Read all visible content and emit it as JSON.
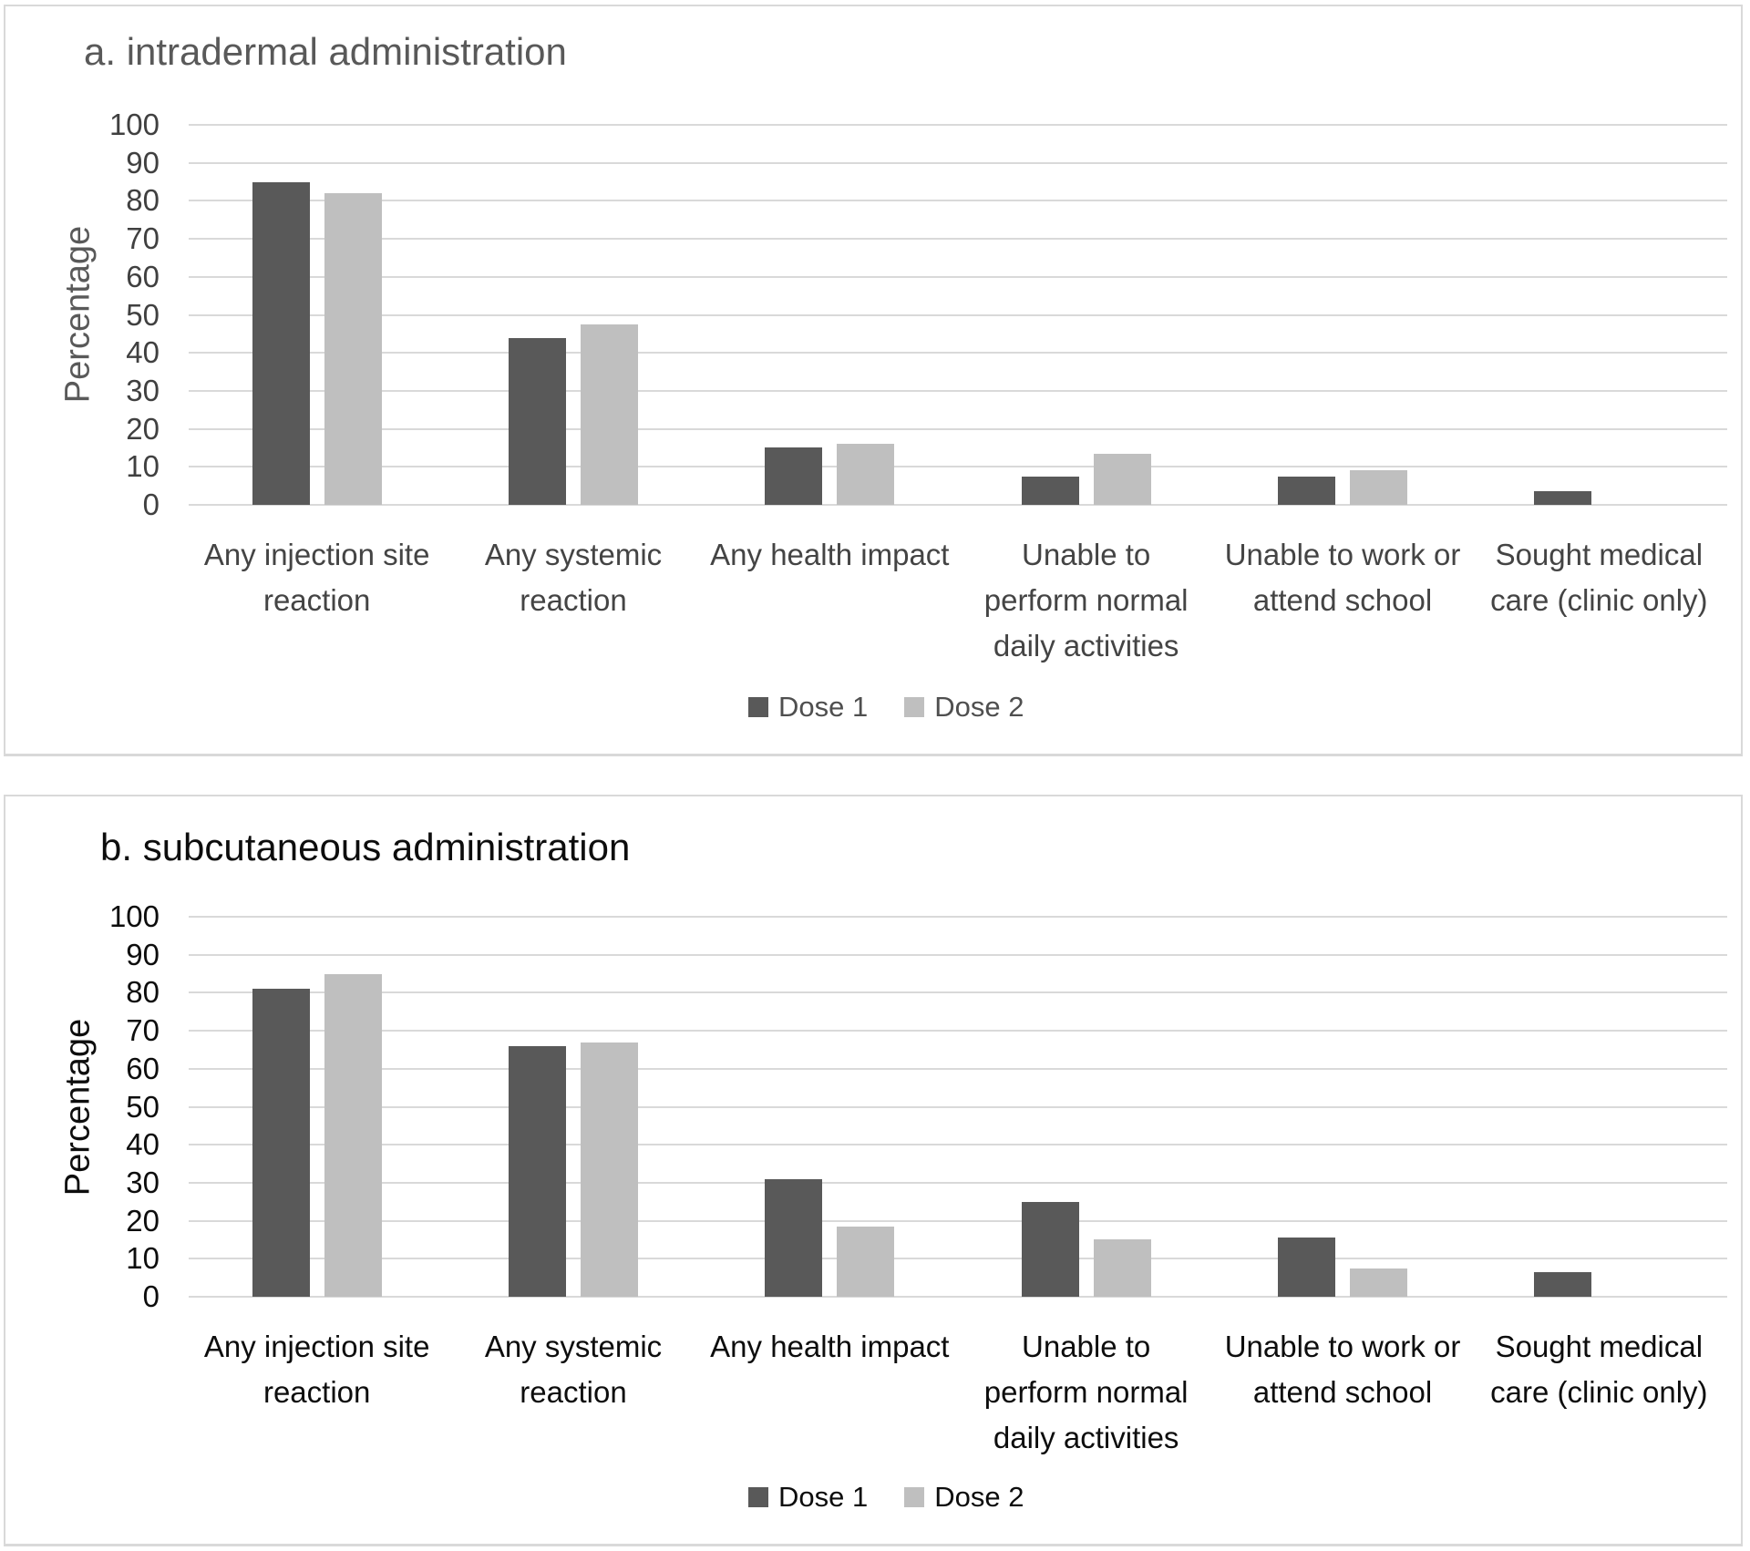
{
  "panels": [
    {
      "id": "a",
      "title": "a. intradermal administration",
      "ylabel": "Percentage",
      "legend": [
        {
          "label": "Dose 1"
        },
        {
          "label": "Dose 2"
        }
      ]
    },
    {
      "id": "b",
      "title": "b. subcutaneous administration",
      "ylabel": "Percentage",
      "legend": [
        {
          "label": "Dose 1"
        },
        {
          "label": "Dose 2"
        }
      ]
    }
  ],
  "category_lines": [
    [
      "Any injection site",
      "reaction"
    ],
    [
      "Any systemic",
      "reaction"
    ],
    [
      "Any health impact"
    ],
    [
      "Unable to",
      "perform normal",
      "daily activities"
    ],
    [
      "Unable to work or",
      "attend school"
    ],
    [
      "Sought medical",
      "care (clinic only)"
    ]
  ],
  "y_axis": {
    "min": 0,
    "max": 100,
    "step": 10
  },
  "colors": {
    "dose1": "#595959",
    "dose2": "#bfbfbf",
    "gridline": "#d9d9d9",
    "panel_border": "#d9d9d9",
    "panel_a_text": "#595959",
    "panel_b_text": "#0d0d0d"
  },
  "chart_data": [
    {
      "type": "bar",
      "title": "a. intradermal administration",
      "categories": [
        "Any injection site reaction",
        "Any systemic reaction",
        "Any health impact",
        "Unable to perform normal daily activities",
        "Unable to work or attend school",
        "Sought medical care (clinic only)"
      ],
      "series": [
        {
          "name": "Dose 1",
          "color": "#595959",
          "values": [
            85,
            44,
            15,
            7.5,
            7.5,
            3.5
          ]
        },
        {
          "name": "Dose 2",
          "color": "#bfbfbf",
          "values": [
            82,
            47.5,
            16,
            13.5,
            9,
            0
          ]
        }
      ],
      "xlabel": "",
      "ylabel": "Percentage",
      "ylim": [
        0,
        100
      ],
      "ytick_step": 10,
      "grid": "horizontal",
      "legend_position": "bottom"
    },
    {
      "type": "bar",
      "title": "b. subcutaneous administration",
      "categories": [
        "Any injection site reaction",
        "Any systemic reaction",
        "Any health impact",
        "Unable to perform normal daily activities",
        "Unable to work or attend school",
        "Sought medical care (clinic only)"
      ],
      "series": [
        {
          "name": "Dose 1",
          "color": "#595959",
          "values": [
            81,
            66,
            31,
            25,
            15.5,
            6.5
          ]
        },
        {
          "name": "Dose 2",
          "color": "#bfbfbf",
          "values": [
            85,
            67,
            18.5,
            15,
            7.5,
            0
          ]
        }
      ],
      "xlabel": "",
      "ylabel": "Percentage",
      "ylim": [
        0,
        100
      ],
      "ytick_step": 10,
      "grid": "horizontal",
      "legend_position": "bottom"
    }
  ]
}
